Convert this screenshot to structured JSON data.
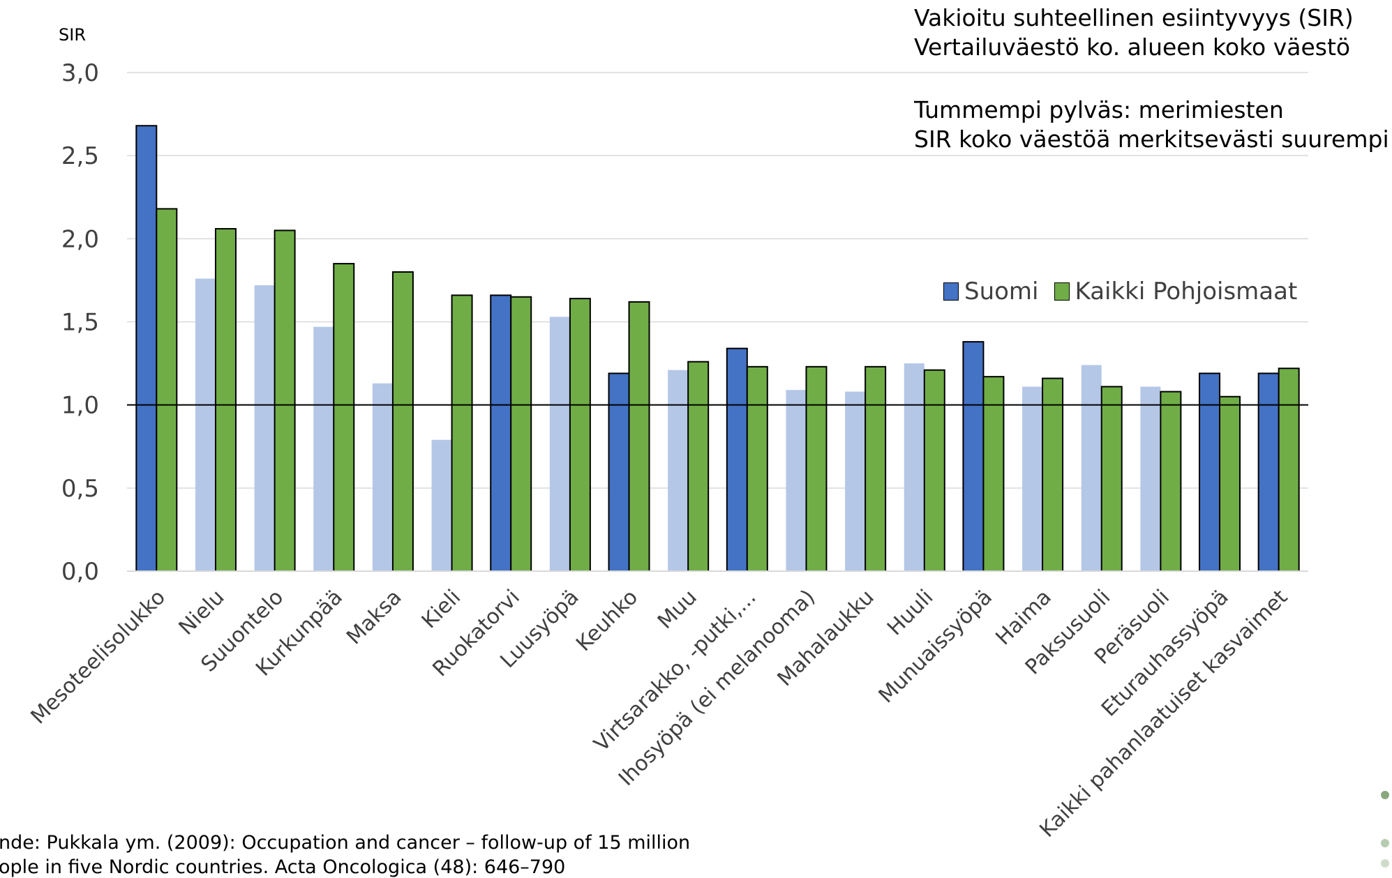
{
  "annotations": {
    "line1": "Vakioitu suhteellinen esiintyvyys (SIR)",
    "line2": "Vertailuväestö ko. alueen koko väestö",
    "line3": "Tummempi pylväs: merimiesten",
    "line4": "SIR koko väestöä merkitsevästi suurempi"
  },
  "source": {
    "line1": "nde: Pukkala ym. (2009): Occupation and cancer – follow-up of 15 million",
    "line2": "ople in five Nordic countries. Acta Oncologica (48): 646–790"
  },
  "colors": {
    "suomi_dark": "#4472c4",
    "suomi_light": "#b4c7e7",
    "pohjoismaat": "#70ad47",
    "grid": "#d9d9d9",
    "reference_line": "#000000"
  },
  "chart_data": {
    "type": "bar",
    "ylabel": "SIR",
    "ylim": [
      0,
      3
    ],
    "yticks": [
      "0,0",
      "0,5",
      "1,0",
      "1,5",
      "2,0",
      "2,5",
      "3,0"
    ],
    "grid": true,
    "reference_line": 1.0,
    "legend_position": "right",
    "categories": [
      "Mesoteelisolukko",
      "Nielu",
      "Suuontelo",
      "Kurkunpää",
      "Maksa",
      "Kieli",
      "Ruokatorvi",
      "Luusyöpä",
      "Keuhko",
      "Muu",
      "Virtsarakko, -putki,...",
      "Ihosyöpä (ei melanooma)",
      "Mahalaukku",
      "Huuli",
      "Munuaissyöpä",
      "Haima",
      "Paksusuoli",
      "Peräsuoli",
      "Eturauhassyöpä",
      "Kaikki pahanlaatuiset kasvaimet"
    ],
    "series": [
      {
        "name": "Suomi",
        "values": [
          2.68,
          1.76,
          1.72,
          1.47,
          1.13,
          0.79,
          1.66,
          1.53,
          1.19,
          1.21,
          1.34,
          1.09,
          1.08,
          1.25,
          1.38,
          1.11,
          1.24,
          1.11,
          1.19,
          1.19
        ],
        "significant": [
          true,
          false,
          false,
          false,
          false,
          false,
          true,
          false,
          true,
          false,
          true,
          false,
          false,
          false,
          true,
          false,
          false,
          false,
          true,
          true
        ]
      },
      {
        "name": "Kaikki Pohjoismaat",
        "values": [
          2.18,
          2.06,
          2.05,
          1.85,
          1.8,
          1.66,
          1.65,
          1.64,
          1.62,
          1.26,
          1.23,
          1.23,
          1.23,
          1.21,
          1.17,
          1.16,
          1.11,
          1.08,
          1.05,
          1.22
        ]
      }
    ]
  }
}
